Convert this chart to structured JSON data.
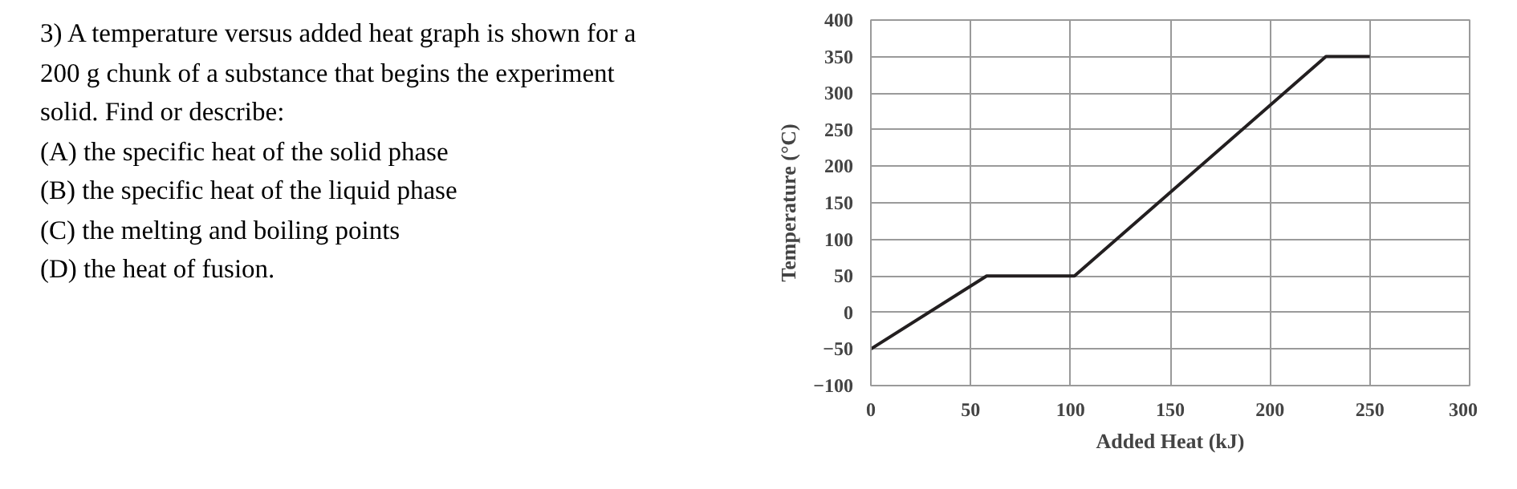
{
  "chart_data": [
    {
      "type": "other",
      "annotations": [
        "3) A temperature versus added heat graph is shown for a",
        "200 g chunk of a substance that begins the experiment",
        "solid.  Find or describe:",
        "(A) the specific heat of the solid phase",
        "(B) the specific heat of the liquid phase",
        "(C) the melting and boiling points",
        "(D) the heat of fusion."
      ]
    },
    {
      "type": "line",
      "x": [
        0,
        58,
        102,
        228,
        250
      ],
      "values": [
        -50,
        50,
        50,
        350,
        350
      ],
      "color": "#231f20",
      "xlabel": "Added Heat (kJ)",
      "ylabel": "Temperature (°C)",
      "xlim": [
        0,
        300
      ],
      "ylim": [
        -100,
        400
      ],
      "xticks": [
        0,
        50,
        100,
        150,
        200,
        250,
        300
      ],
      "yticks": [
        -100,
        -50,
        0,
        50,
        100,
        150,
        200,
        250,
        300,
        350,
        400
      ],
      "grid": true
    }
  ]
}
